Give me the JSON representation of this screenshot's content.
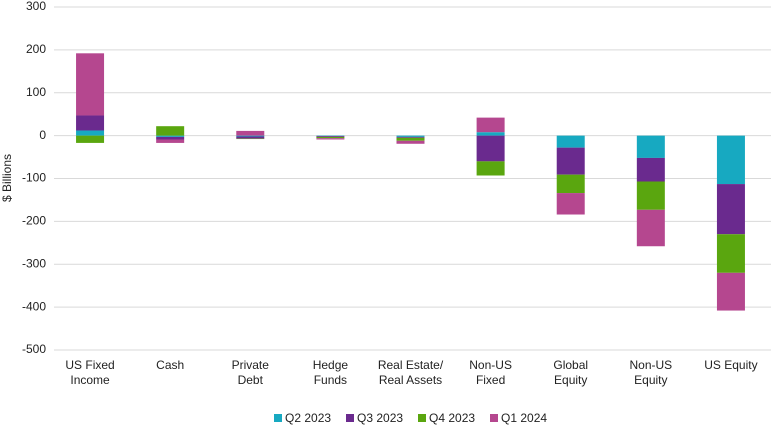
{
  "chart_data": {
    "type": "stacked-bar",
    "y_label": "$ Billions",
    "categories": [
      [
        "US Fixed",
        "Income"
      ],
      [
        "Cash"
      ],
      [
        "Private",
        "Debt"
      ],
      [
        "Hedge",
        "Funds"
      ],
      [
        "Real Estate/",
        "Real Assets"
      ],
      [
        "Non-US",
        "Fixed"
      ],
      [
        "Global",
        "Equity"
      ],
      [
        "Non-US",
        "Equity"
      ],
      [
        "US Equity"
      ]
    ],
    "series": [
      {
        "name": "Q2 2023",
        "color": "#17a9c1",
        "values": [
          12,
          -3,
          -2,
          -1,
          -3,
          8,
          -28,
          -52,
          -113
        ]
      },
      {
        "name": "Q3 2023",
        "color": "#6a2a8e",
        "values": [
          35,
          -6,
          -5,
          -2,
          -2,
          -60,
          -63,
          -55,
          -117
        ]
      },
      {
        "name": "Q4 2023",
        "color": "#5aa60f",
        "values": [
          -17,
          22,
          -1,
          -3,
          -7,
          -33,
          -43,
          -66,
          -90
        ]
      },
      {
        "name": "Q1 2024",
        "color": "#b5478f",
        "values": [
          145,
          -8,
          11,
          -3,
          -7,
          34,
          -50,
          -85,
          -88
        ]
      }
    ],
    "ylim": [
      -500,
      300
    ],
    "yticks": [
      -500,
      -400,
      -300,
      -200,
      -100,
      0,
      100,
      200,
      300
    ],
    "grid": true
  }
}
